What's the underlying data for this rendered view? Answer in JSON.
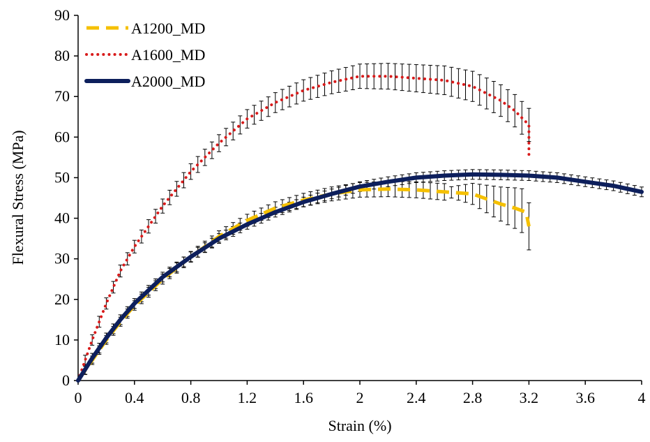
{
  "chart_data": {
    "type": "line",
    "title": "",
    "xlabel": "Strain (%)",
    "ylabel": "Flexural Stress (MPa)",
    "xlim": [
      0,
      4
    ],
    "ylim": [
      0,
      90
    ],
    "xticks": [
      "0",
      "0.4",
      "0.8",
      "1.2",
      "1.6",
      "2",
      "2.4",
      "2.8",
      "3.2",
      "3.6",
      "4"
    ],
    "yticks": [
      "0",
      "10",
      "20",
      "30",
      "40",
      "50",
      "60",
      "70",
      "80",
      "90"
    ],
    "grid": false,
    "legend_position": "top-left",
    "series": [
      {
        "name": "A1200_MD",
        "color": "#f5c000",
        "style": "dashed",
        "x": [
          0,
          0.1,
          0.2,
          0.3,
          0.4,
          0.6,
          0.8,
          1.0,
          1.2,
          1.4,
          1.6,
          1.8,
          2.0,
          2.2,
          2.4,
          2.6,
          2.8,
          3.0,
          3.1,
          3.18,
          3.2
        ],
        "y": [
          0,
          5,
          10,
          14.5,
          18.5,
          25,
          30.5,
          35.5,
          39.5,
          42.5,
          44.5,
          46,
          47,
          47.2,
          47,
          46.5,
          46,
          43.5,
          42.5,
          41.5,
          38
        ]
      },
      {
        "name": "A1600_MD",
        "color": "#d81b1b",
        "style": "dotted",
        "x": [
          0,
          0.05,
          0.1,
          0.2,
          0.3,
          0.4,
          0.5,
          0.6,
          0.8,
          1.0,
          1.2,
          1.4,
          1.6,
          1.8,
          2.0,
          2.2,
          2.4,
          2.6,
          2.8,
          3.0,
          3.1,
          3.2,
          3.2
        ],
        "y": [
          0,
          5,
          10,
          19,
          27,
          33,
          38,
          43,
          51.5,
          58.5,
          64.5,
          68.5,
          71.5,
          73.5,
          75,
          75,
          74.5,
          74,
          72.5,
          69,
          66.5,
          63,
          55
        ]
      },
      {
        "name": "A2000_MD",
        "color": "#0d1f5c",
        "style": "solid",
        "x": [
          0,
          0.1,
          0.2,
          0.3,
          0.4,
          0.6,
          0.8,
          1.0,
          1.2,
          1.4,
          1.6,
          1.8,
          2.0,
          2.2,
          2.4,
          2.6,
          2.8,
          3.0,
          3.2,
          3.4,
          3.6,
          3.8,
          4.0
        ],
        "y": [
          0,
          5.5,
          10.5,
          15,
          19,
          25.5,
          30.5,
          35,
          38.5,
          41.5,
          44,
          46,
          47.8,
          49,
          50,
          50.5,
          50.8,
          50.7,
          50.5,
          50,
          49,
          48,
          46.5
        ]
      }
    ],
    "error_bars": true
  }
}
